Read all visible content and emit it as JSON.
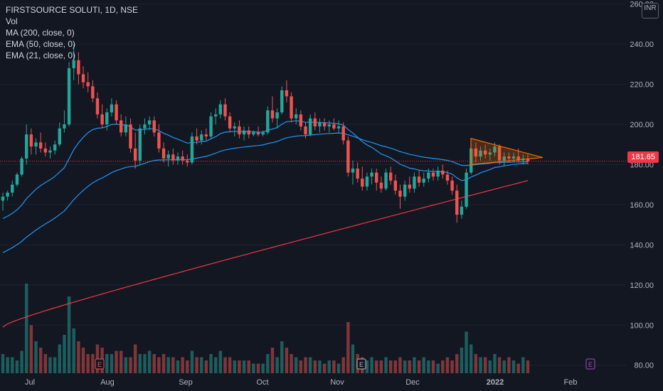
{
  "legend": {
    "symbol": "FIRSTSOURCE SOLUTI, 1D, NSE",
    "vol": "Vol",
    "ma200": "MA (200, close, 0)",
    "ema50": "EMA (50, close, 0)",
    "ema21": "EMA (21, close, 0)"
  },
  "currency": "INR",
  "last_price": "181.65",
  "colors": {
    "up": "#26a69a",
    "down": "#ef5350",
    "ma200": "#f23645",
    "ema": "#2196f3",
    "grid": "#1e222d",
    "pattern": "#ef6c00"
  },
  "chart_data": {
    "type": "candlestick",
    "y_axis": {
      "ticks": [
        80,
        100,
        120,
        140,
        160,
        180,
        200,
        220,
        240,
        260
      ],
      "ylim": [
        76,
        262
      ]
    },
    "x_axis": {
      "ticks": [
        "Jul",
        "Aug",
        "Sep",
        "Oct",
        "Nov",
        "Dec",
        "2022",
        "Feb"
      ]
    },
    "last_price": 181.65,
    "candles": [
      {
        "o": 162,
        "h": 166,
        "l": 157,
        "c": 164
      },
      {
        "o": 164,
        "h": 167,
        "l": 162,
        "c": 166
      },
      {
        "o": 166,
        "h": 172,
        "l": 164,
        "c": 170
      },
      {
        "o": 170,
        "h": 176,
        "l": 169,
        "c": 175
      },
      {
        "o": 175,
        "h": 184,
        "l": 174,
        "c": 183
      },
      {
        "o": 183,
        "h": 200,
        "l": 180,
        "c": 195
      },
      {
        "o": 195,
        "h": 198,
        "l": 185,
        "c": 189
      },
      {
        "o": 189,
        "h": 193,
        "l": 185,
        "c": 191
      },
      {
        "o": 191,
        "h": 196,
        "l": 186,
        "c": 188
      },
      {
        "o": 188,
        "h": 191,
        "l": 184,
        "c": 186
      },
      {
        "o": 186,
        "h": 189,
        "l": 183,
        "c": 187
      },
      {
        "o": 187,
        "h": 192,
        "l": 185,
        "c": 190
      },
      {
        "o": 190,
        "h": 201,
        "l": 189,
        "c": 198
      },
      {
        "o": 198,
        "h": 207,
        "l": 196,
        "c": 200
      },
      {
        "o": 200,
        "h": 231,
        "l": 199,
        "c": 228
      },
      {
        "o": 228,
        "h": 240,
        "l": 222,
        "c": 232
      },
      {
        "o": 232,
        "h": 236,
        "l": 220,
        "c": 225
      },
      {
        "o": 225,
        "h": 229,
        "l": 218,
        "c": 221
      },
      {
        "o": 221,
        "h": 226,
        "l": 216,
        "c": 219
      },
      {
        "o": 219,
        "h": 222,
        "l": 211,
        "c": 213
      },
      {
        "o": 213,
        "h": 216,
        "l": 203,
        "c": 205
      },
      {
        "o": 205,
        "h": 210,
        "l": 198,
        "c": 200
      },
      {
        "o": 200,
        "h": 208,
        "l": 197,
        "c": 206
      },
      {
        "o": 206,
        "h": 213,
        "l": 204,
        "c": 210
      },
      {
        "o": 210,
        "h": 212,
        "l": 200,
        "c": 202
      },
      {
        "o": 202,
        "h": 205,
        "l": 194,
        "c": 196
      },
      {
        "o": 196,
        "h": 204,
        "l": 194,
        "c": 200
      },
      {
        "o": 200,
        "h": 203,
        "l": 186,
        "c": 188
      },
      {
        "o": 188,
        "h": 196,
        "l": 178,
        "c": 182
      },
      {
        "o": 182,
        "h": 200,
        "l": 180,
        "c": 198
      },
      {
        "o": 198,
        "h": 203,
        "l": 195,
        "c": 200
      },
      {
        "o": 200,
        "h": 204,
        "l": 197,
        "c": 202
      },
      {
        "o": 202,
        "h": 204,
        "l": 194,
        "c": 196
      },
      {
        "o": 196,
        "h": 200,
        "l": 186,
        "c": 188
      },
      {
        "o": 188,
        "h": 191,
        "l": 181,
        "c": 183
      },
      {
        "o": 183,
        "h": 187,
        "l": 179,
        "c": 185
      },
      {
        "o": 185,
        "h": 188,
        "l": 180,
        "c": 182
      },
      {
        "o": 182,
        "h": 186,
        "l": 180,
        "c": 184
      },
      {
        "o": 184,
        "h": 187,
        "l": 180,
        "c": 182
      },
      {
        "o": 182,
        "h": 185,
        "l": 179,
        "c": 181
      },
      {
        "o": 181,
        "h": 196,
        "l": 180,
        "c": 194
      },
      {
        "o": 194,
        "h": 198,
        "l": 190,
        "c": 192
      },
      {
        "o": 192,
        "h": 197,
        "l": 190,
        "c": 195
      },
      {
        "o": 195,
        "h": 198,
        "l": 192,
        "c": 194
      },
      {
        "o": 194,
        "h": 206,
        "l": 193,
        "c": 204
      },
      {
        "o": 204,
        "h": 208,
        "l": 200,
        "c": 205
      },
      {
        "o": 205,
        "h": 212,
        "l": 203,
        "c": 210
      },
      {
        "o": 210,
        "h": 213,
        "l": 202,
        "c": 204
      },
      {
        "o": 204,
        "h": 206,
        "l": 196,
        "c": 198
      },
      {
        "o": 198,
        "h": 201,
        "l": 194,
        "c": 199
      },
      {
        "o": 199,
        "h": 202,
        "l": 193,
        "c": 195
      },
      {
        "o": 195,
        "h": 199,
        "l": 192,
        "c": 197
      },
      {
        "o": 197,
        "h": 199,
        "l": 193,
        "c": 195
      },
      {
        "o": 195,
        "h": 197,
        "l": 194,
        "c": 196
      },
      {
        "o": 196,
        "h": 199,
        "l": 194,
        "c": 195
      },
      {
        "o": 195,
        "h": 197,
        "l": 194,
        "c": 196
      },
      {
        "o": 196,
        "h": 209,
        "l": 195,
        "c": 207
      },
      {
        "o": 207,
        "h": 214,
        "l": 201,
        "c": 203
      },
      {
        "o": 203,
        "h": 208,
        "l": 198,
        "c": 206
      },
      {
        "o": 206,
        "h": 219,
        "l": 205,
        "c": 217
      },
      {
        "o": 217,
        "h": 222,
        "l": 211,
        "c": 214
      },
      {
        "o": 214,
        "h": 216,
        "l": 201,
        "c": 203
      },
      {
        "o": 203,
        "h": 208,
        "l": 200,
        "c": 205
      },
      {
        "o": 205,
        "h": 207,
        "l": 197,
        "c": 199
      },
      {
        "o": 199,
        "h": 201,
        "l": 193,
        "c": 195
      },
      {
        "o": 195,
        "h": 205,
        "l": 194,
        "c": 203
      },
      {
        "o": 203,
        "h": 206,
        "l": 197,
        "c": 199
      },
      {
        "o": 199,
        "h": 203,
        "l": 196,
        "c": 201
      },
      {
        "o": 201,
        "h": 203,
        "l": 197,
        "c": 199
      },
      {
        "o": 199,
        "h": 202,
        "l": 196,
        "c": 200
      },
      {
        "o": 200,
        "h": 203,
        "l": 197,
        "c": 198
      },
      {
        "o": 198,
        "h": 202,
        "l": 196,
        "c": 199
      },
      {
        "o": 199,
        "h": 201,
        "l": 190,
        "c": 192
      },
      {
        "o": 192,
        "h": 194,
        "l": 174,
        "c": 176
      },
      {
        "o": 176,
        "h": 182,
        "l": 170,
        "c": 178
      },
      {
        "o": 178,
        "h": 181,
        "l": 171,
        "c": 173
      },
      {
        "o": 173,
        "h": 179,
        "l": 167,
        "c": 169
      },
      {
        "o": 169,
        "h": 176,
        "l": 167,
        "c": 174
      },
      {
        "o": 174,
        "h": 178,
        "l": 170,
        "c": 176
      },
      {
        "o": 176,
        "h": 178,
        "l": 167,
        "c": 171
      },
      {
        "o": 171,
        "h": 174,
        "l": 166,
        "c": 168
      },
      {
        "o": 168,
        "h": 178,
        "l": 167,
        "c": 176
      },
      {
        "o": 176,
        "h": 179,
        "l": 170,
        "c": 172
      },
      {
        "o": 172,
        "h": 175,
        "l": 165,
        "c": 167
      },
      {
        "o": 167,
        "h": 170,
        "l": 158,
        "c": 164
      },
      {
        "o": 164,
        "h": 172,
        "l": 162,
        "c": 170
      },
      {
        "o": 170,
        "h": 174,
        "l": 166,
        "c": 168
      },
      {
        "o": 168,
        "h": 176,
        "l": 166,
        "c": 174
      },
      {
        "o": 174,
        "h": 177,
        "l": 169,
        "c": 171
      },
      {
        "o": 171,
        "h": 176,
        "l": 169,
        "c": 173
      },
      {
        "o": 173,
        "h": 178,
        "l": 171,
        "c": 176
      },
      {
        "o": 176,
        "h": 178,
        "l": 172,
        "c": 174
      },
      {
        "o": 174,
        "h": 179,
        "l": 172,
        "c": 177
      },
      {
        "o": 177,
        "h": 180,
        "l": 173,
        "c": 175
      },
      {
        "o": 175,
        "h": 177,
        "l": 170,
        "c": 172
      },
      {
        "o": 172,
        "h": 174,
        "l": 165,
        "c": 167
      },
      {
        "o": 167,
        "h": 170,
        "l": 151,
        "c": 155
      },
      {
        "o": 155,
        "h": 162,
        "l": 153,
        "c": 159
      },
      {
        "o": 159,
        "h": 178,
        "l": 158,
        "c": 176
      },
      {
        "o": 176,
        "h": 190,
        "l": 175,
        "c": 188
      },
      {
        "o": 188,
        "h": 191,
        "l": 181,
        "c": 184
      },
      {
        "o": 184,
        "h": 189,
        "l": 182,
        "c": 187
      },
      {
        "o": 187,
        "h": 190,
        "l": 183,
        "c": 185
      },
      {
        "o": 185,
        "h": 188,
        "l": 182,
        "c": 186
      },
      {
        "o": 186,
        "h": 191,
        "l": 184,
        "c": 189
      },
      {
        "o": 189,
        "h": 190,
        "l": 180,
        "c": 182
      },
      {
        "o": 182,
        "h": 186,
        "l": 179,
        "c": 184
      },
      {
        "o": 184,
        "h": 186,
        "l": 181,
        "c": 183
      },
      {
        "o": 183,
        "h": 186,
        "l": 181,
        "c": 184
      },
      {
        "o": 184,
        "h": 188,
        "l": 181,
        "c": 182
      },
      {
        "o": 182,
        "h": 185,
        "l": 180,
        "c": 183
      },
      {
        "o": 183,
        "h": 185,
        "l": 180,
        "c": 181.65
      }
    ],
    "volume": [
      6,
      5,
      5,
      4,
      7,
      28,
      15,
      10,
      8,
      6,
      5,
      5,
      9,
      12,
      24,
      14,
      10,
      8,
      6,
      6,
      9,
      8,
      6,
      6,
      7,
      7,
      5,
      5,
      9,
      6,
      6,
      7,
      6,
      5,
      6,
      5,
      5,
      4,
      5,
      4,
      7,
      5,
      5,
      4,
      6,
      5,
      7,
      5,
      5,
      4,
      4,
      4,
      4,
      3,
      3,
      3,
      6,
      8,
      5,
      10,
      8,
      6,
      5,
      4,
      5,
      5,
      4,
      4,
      3,
      4,
      4,
      3,
      5,
      16,
      9,
      6,
      5,
      4,
      5,
      4,
      4,
      5,
      4,
      4,
      5,
      4,
      4,
      5,
      4,
      5,
      4,
      4,
      3,
      4,
      5,
      4,
      6,
      8,
      13,
      9,
      6,
      5,
      5,
      4,
      6,
      5,
      4,
      5,
      4,
      3,
      5,
      4
    ],
    "ma200": {
      "start": 99,
      "end": 172
    },
    "triangle": {
      "upper": [
        193,
        183.5
      ],
      "lower": [
        180,
        183.5
      ]
    }
  }
}
